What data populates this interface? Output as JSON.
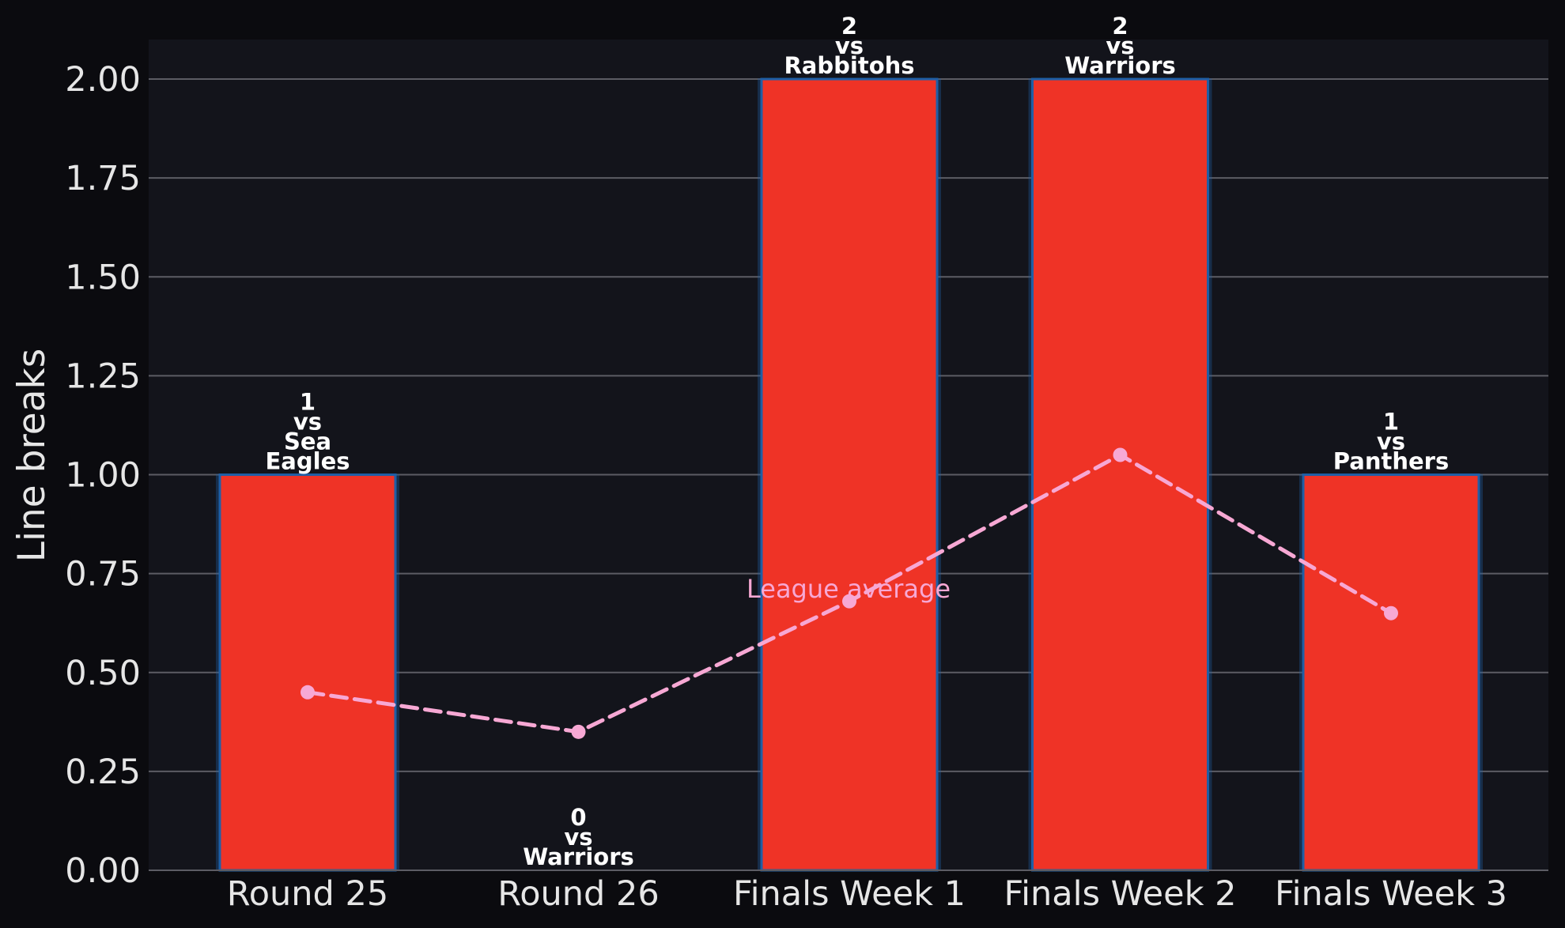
{
  "chart_data": {
    "type": "bar",
    "categories": [
      "Round 25",
      "Round 26",
      "Finals Week 1",
      "Finals Week 2",
      "Finals Week 3"
    ],
    "values": [
      1,
      0,
      2,
      2,
      1
    ],
    "opponents": [
      "Sea Eagles",
      "Warriors",
      "Rabbitohs",
      "Warriors",
      "Panthers"
    ],
    "bar_labels": [
      [
        "1",
        "vs",
        "Sea",
        "Eagles"
      ],
      [
        "0",
        "vs",
        "Warriors"
      ],
      [
        "2",
        "vs",
        "Rabbitohs"
      ],
      [
        "2",
        "vs",
        "Warriors"
      ],
      [
        "1",
        "vs",
        "Panthers"
      ]
    ],
    "series": [
      {
        "values": [
          1,
          0,
          2,
          2,
          1
        ]
      },
      {
        "name": "League average",
        "values": [
          0.45,
          0.35,
          0.68,
          1.05,
          0.65
        ]
      }
    ],
    "line_annotation": "League average",
    "ylabel": "Line breaks",
    "xlabel": "",
    "ylim": [
      0,
      2.1
    ],
    "yticks": [
      "0.00",
      "0.25",
      "0.50",
      "0.75",
      "1.00",
      "1.25",
      "1.50",
      "1.75",
      "2.00"
    ],
    "grid": "horizontal",
    "colors": {
      "background": "#0b0b0f",
      "plot_background": "#13141b",
      "bar_fill": "#ef3326",
      "bar_edge": "#1f5fa6",
      "average_line": "#f7a8d4",
      "grid": "#5c5c64",
      "text": "#e6e6e6"
    }
  }
}
